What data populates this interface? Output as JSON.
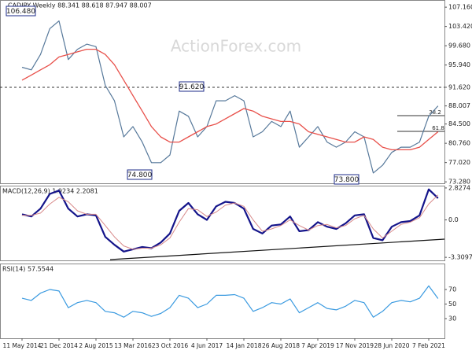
{
  "chart_data": [
    {
      "type": "line",
      "title": "CADJPY,Weekly 88.341 88.618 87.947 88.007",
      "watermark": "ActionForex.com",
      "categories": [
        "11 May 2014",
        null,
        null,
        null,
        "21 Dec 2014",
        null,
        null,
        null,
        "2 Aug 2015",
        null,
        null,
        null,
        "13 Mar 2016",
        null,
        null,
        null,
        "23 Oct 2016",
        null,
        null,
        null,
        "4 Jun 2017",
        null,
        null,
        null,
        "14 Jan 2018",
        null,
        null,
        null,
        "26 Aug 2018",
        null,
        null,
        null,
        "7 Apr 2019",
        null,
        null,
        null,
        "17 Nov 2019",
        null,
        null,
        null,
        "28 Jun 2020",
        null,
        null,
        null,
        "7 Feb 2021",
        null
      ],
      "series": [
        {
          "name": "Close",
          "color": "#56789a",
          "values": [
            95.5,
            95,
            98,
            103,
            104.5,
            97,
            99,
            100,
            99.5,
            92,
            89,
            82,
            84,
            81,
            77,
            77,
            78.5,
            87,
            86,
            82,
            84,
            89,
            89,
            90,
            89,
            82,
            83,
            85,
            84,
            87,
            80,
            82,
            84,
            81,
            80,
            81,
            83,
            82,
            75,
            76.5,
            79,
            80,
            80,
            81,
            86,
            88.007
          ]
        },
        {
          "name": "MA",
          "color": "#e8504a",
          "values": [
            93,
            94,
            95,
            96,
            97.5,
            98,
            98.5,
            99,
            99,
            98,
            96,
            93,
            90,
            87,
            84,
            82,
            81,
            81,
            82,
            83,
            84,
            84.5,
            85.5,
            86.5,
            87.5,
            87,
            86,
            85.5,
            85,
            85,
            84.5,
            83,
            82.5,
            82,
            81.5,
            81,
            81,
            82,
            81.5,
            80,
            79.5,
            79.5,
            79.5,
            80,
            81.5,
            83
          ]
        }
      ],
      "annotations": [
        "106.480",
        "91.620",
        "74.800",
        "73.800",
        "38.2",
        "61.8"
      ],
      "ylim": [
        73,
        108.4
      ],
      "yticks": [
        {
          "value": 107.16,
          "label": "107.160"
        },
        {
          "value": 103.42,
          "label": "103.420"
        },
        {
          "value": 99.68,
          "label": "99.680"
        },
        {
          "value": 95.94,
          "label": "95.940"
        },
        {
          "value": 91.62,
          "label": "91.620"
        },
        88.007,
        {
          "value": 84.5,
          "label": "84.500"
        },
        {
          "value": 80.76,
          "label": "80.760"
        },
        {
          "value": 77.02,
          "label": "77.020"
        },
        {
          "value": 73.28,
          "label": "73.280"
        }
      ]
    },
    {
      "type": "line",
      "title": "MACD(12,26,9) 1.9234 2.2081",
      "series": [
        {
          "name": "MACD",
          "color": "#14148a",
          "values": [
            0.5,
            0.3,
            1,
            2.3,
            2.6,
            1,
            0.3,
            0.5,
            0.4,
            -1.5,
            -2.2,
            -2.8,
            -2.6,
            -2.4,
            -2.5,
            -2,
            -1.2,
            0.8,
            1.5,
            0.5,
            0,
            1.2,
            1.6,
            1.5,
            1,
            -0.8,
            -1.2,
            -0.5,
            -0.4,
            0.3,
            -1,
            -0.9,
            -0.2,
            -0.6,
            -0.8,
            -0.3,
            0.4,
            0.5,
            -1.6,
            -1.8,
            -0.6,
            -0.2,
            -0.1,
            0.4,
            2.7,
            1.9234
          ]
        },
        {
          "name": "Signal",
          "color": "#d88a8a",
          "values": [
            0.4,
            0.4,
            0.6,
            1.4,
            2,
            1.6,
            0.8,
            0.5,
            0.5,
            -0.5,
            -1.5,
            -2.3,
            -2.6,
            -2.5,
            -2.5,
            -2.2,
            -1.6,
            -0.2,
            1,
            0.9,
            0.3,
            0.7,
            1.3,
            1.5,
            1.2,
            0,
            -1,
            -0.8,
            -0.5,
            0,
            -0.5,
            -0.9,
            -0.5,
            -0.4,
            -0.7,
            -0.5,
            0.1,
            0.4,
            -0.8,
            -1.6,
            -1,
            -0.4,
            -0.2,
            0.2,
            1.4,
            2.2081
          ]
        }
      ],
      "ylim": [
        -3.58,
        2.96
      ],
      "yticks": [
        2.8274,
        {
          "value": 0,
          "label": "0.0"
        },
        -3.3097
      ]
    },
    {
      "type": "line",
      "title": "RSI(14) 57.5544",
      "series": [
        {
          "name": "RSI",
          "color": "#3a9ae0",
          "values": [
            58,
            55,
            65,
            70,
            68,
            45,
            52,
            55,
            52,
            40,
            38,
            32,
            40,
            38,
            33,
            37,
            45,
            62,
            58,
            45,
            50,
            62,
            62,
            63,
            58,
            40,
            45,
            52,
            50,
            57,
            38,
            45,
            52,
            44,
            42,
            47,
            55,
            52,
            32,
            40,
            52,
            55,
            53,
            58,
            75,
            57.5544
          ]
        }
      ],
      "ylim": [
        3,
        104.6
      ],
      "yticks": [
        70,
        50,
        30
      ]
    }
  ]
}
